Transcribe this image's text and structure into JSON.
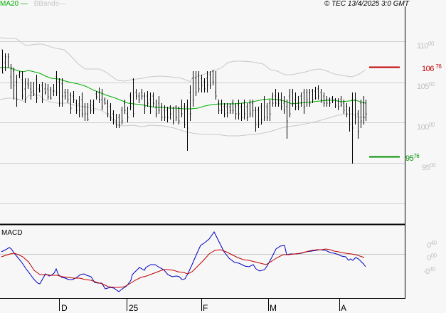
{
  "legend": {
    "ma20_label": "MA20",
    "bbands_label": "BBands",
    "ma20_color": "#00b000",
    "bbands_color": "#c8c8c8"
  },
  "copyright": "© TEC 13/4/2025 3:0 GMT",
  "price_axis": {
    "labels": [
      {
        "int": "110",
        "dec": "00",
        "value": 11000
      },
      {
        "int": "105",
        "dec": "00",
        "value": 10500
      },
      {
        "int": "100",
        "dec": "00",
        "value": 10000
      },
      {
        "int": "95",
        "dec": "00",
        "value": 9500
      }
    ]
  },
  "levels": {
    "resistance": {
      "int": "106",
      "dec": "76",
      "value": 10676,
      "color": "#c00000"
    },
    "support": {
      "int": "95",
      "dec": "76",
      "value": 9576,
      "color": "#009000"
    }
  },
  "macd": {
    "title": "MACD",
    "axis_labels": [
      {
        "int": "0",
        "dec": "40"
      },
      {
        "int": "0",
        "dec": "00"
      },
      {
        "int": "-0",
        "dec": "40"
      }
    ],
    "macd_color": "#0000c0",
    "signal_color": "#c00000"
  },
  "x_axis": {
    "labels": [
      "D",
      "25",
      "F",
      "M",
      "A"
    ]
  },
  "chart_data": [
    {
      "type": "bar",
      "title": "Price (OHLC bars) with MA20 and Bollinger Bands",
      "xlabel": "",
      "ylabel": "",
      "ylim": [
        9100,
        11400
      ],
      "x_tick_labels": [
        "D",
        "25",
        "F",
        "M",
        "A"
      ],
      "y_tick_labels": [
        "110.00",
        "105.00",
        "100.00",
        "95.00"
      ],
      "grid": true,
      "legend": [
        "MA20",
        "BBands"
      ],
      "annotations": [
        {
          "label": "106.76",
          "value": 106.76,
          "color": "#c00000"
        },
        {
          "label": "95.76",
          "value": 95.76,
          "color": "#009000"
        }
      ],
      "series": [
        {
          "name": "MA20 (approx)",
          "values": [
            106.8,
            106.5,
            106.0,
            105.6,
            105.3,
            105.0,
            104.6,
            104.2,
            103.9,
            103.5,
            103.3,
            103.0,
            102.8,
            102.6,
            102.5,
            102.6,
            102.9,
            103.2,
            103.4,
            103.2,
            103.0,
            103.0,
            102.7,
            102.6,
            102.9,
            103.3,
            103.1,
            103.0,
            103.1
          ]
        },
        {
          "name": "Close (approx)",
          "values": [
            107.0,
            104.5,
            103.0,
            104.0,
            103.5,
            101.5,
            100.0,
            104.8,
            103.0,
            101.5,
            101.0,
            102.5,
            104.7,
            105.8,
            102.5,
            102.0,
            101.0,
            103.5,
            104.5,
            103.0,
            101.5,
            104.0,
            103.8,
            104.3,
            104.0,
            102.5,
            98.5,
            101.0,
            102.2
          ]
        }
      ]
    },
    {
      "type": "line",
      "title": "MACD",
      "ylim": [
        -1.0,
        0.8
      ],
      "y_tick_labels": [
        "0.40",
        "0.00",
        "-0.40"
      ],
      "x_tick_labels": [
        "D",
        "25",
        "F",
        "M",
        "A"
      ],
      "series": [
        {
          "name": "MACD (approx)",
          "values": [
            0.05,
            0.15,
            -0.1,
            -0.5,
            -0.7,
            -0.45,
            -0.3,
            -0.55,
            -0.6,
            -0.45,
            -0.65,
            -0.8,
            -0.6,
            -0.25,
            -0.2,
            -0.4,
            -0.6,
            0.2,
            0.6,
            -0.1,
            -0.3,
            -0.45,
            0.25,
            -0.1,
            0.1,
            0.15,
            0.05,
            -0.05,
            -0.3
          ]
        },
        {
          "name": "Signal (approx)",
          "values": [
            0.0,
            0.08,
            -0.05,
            -0.35,
            -0.45,
            -0.45,
            -0.48,
            -0.5,
            -0.55,
            -0.6,
            -0.7,
            -0.72,
            -0.6,
            -0.45,
            -0.35,
            -0.35,
            -0.4,
            -0.1,
            0.1,
            0.0,
            -0.15,
            -0.3,
            -0.1,
            0.0,
            0.05,
            0.1,
            0.08,
            0.0,
            -0.05
          ]
        }
      ]
    }
  ]
}
